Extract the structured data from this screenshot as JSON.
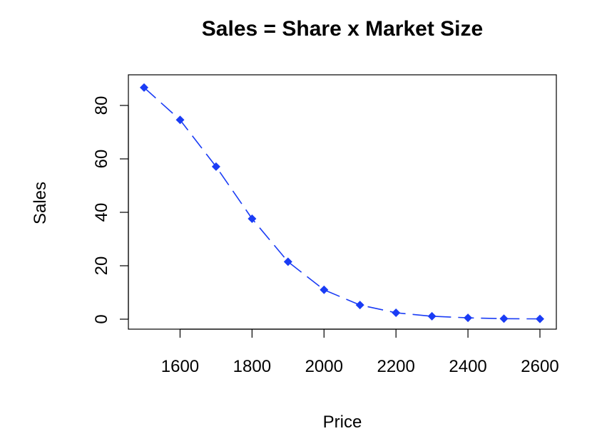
{
  "chart_data": {
    "type": "line",
    "title": "Sales = Share x Market Size",
    "xlabel": "Price",
    "ylabel": "Sales",
    "xlim": [
      1500,
      2600
    ],
    "ylim": [
      0,
      87
    ],
    "x_ticks": [
      1600,
      1800,
      2000,
      2200,
      2400,
      2600
    ],
    "y_ticks": [
      0,
      20,
      40,
      60,
      80
    ],
    "grid": false,
    "legend": "none",
    "series": [
      {
        "color": "#1a3cf5",
        "line_style": "dashed",
        "marker": "diamond",
        "x": [
          1500,
          1600,
          1700,
          1800,
          1900,
          2000,
          2100,
          2200,
          2300,
          2400,
          2500,
          2600
        ],
        "y": [
          86.7,
          74.6,
          57.1,
          37.6,
          21.5,
          11.0,
          5.3,
          2.4,
          1.1,
          0.5,
          0.2,
          0.1
        ]
      }
    ]
  }
}
